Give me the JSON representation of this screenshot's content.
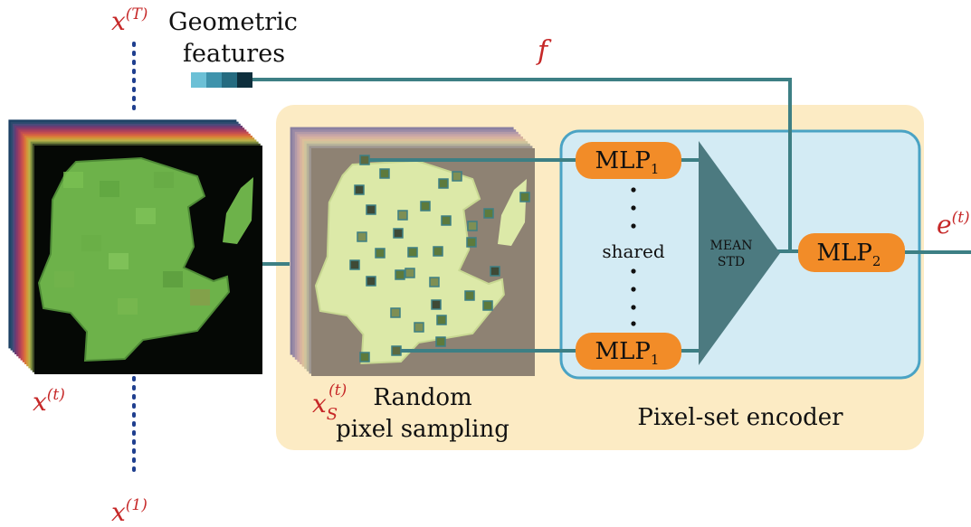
{
  "labels": {
    "time_top": "x",
    "time_top_sup": "(T)",
    "time_cur": "x",
    "time_cur_sup": "(t)",
    "time_first": "x",
    "time_first_sup": "(1)",
    "geo_line1": "Geometric",
    "geo_line2": "features",
    "f_label": "f",
    "sample_x": "x",
    "sample_sub": "S",
    "sample_sup": "(t)",
    "sampling_line1": "Random",
    "sampling_line2": "pixel sampling",
    "encoder_label": "Pixel-set encoder",
    "output_e": "e",
    "output_sup": "(t)",
    "shared": "shared",
    "mean": "MEAN",
    "std": "STD"
  },
  "mlp": {
    "mlp1_top": {
      "base": "MLP",
      "sub": "1"
    },
    "mlp1_bottom": {
      "base": "MLP",
      "sub": "1"
    },
    "mlp2": {
      "base": "MLP",
      "sub": "2"
    }
  },
  "colors": {
    "label_red": "#c62828",
    "connector": "#3d7f84",
    "mlp_fill": "#f28c28",
    "encoder_fill": "#d3ebf4",
    "encoder_stroke": "#4aa3c4",
    "panel_fill": "#fcebc4",
    "pool_fill": "#4c7a80",
    "dots": "#1f3f8f",
    "field_green": "#6db24a",
    "sample_bg": "#8e8273",
    "sample_field": "#dce9a8",
    "geo_features": [
      "#6cc0d6",
      "#3f93ac",
      "#256b80",
      "#0e2f3d"
    ]
  }
}
